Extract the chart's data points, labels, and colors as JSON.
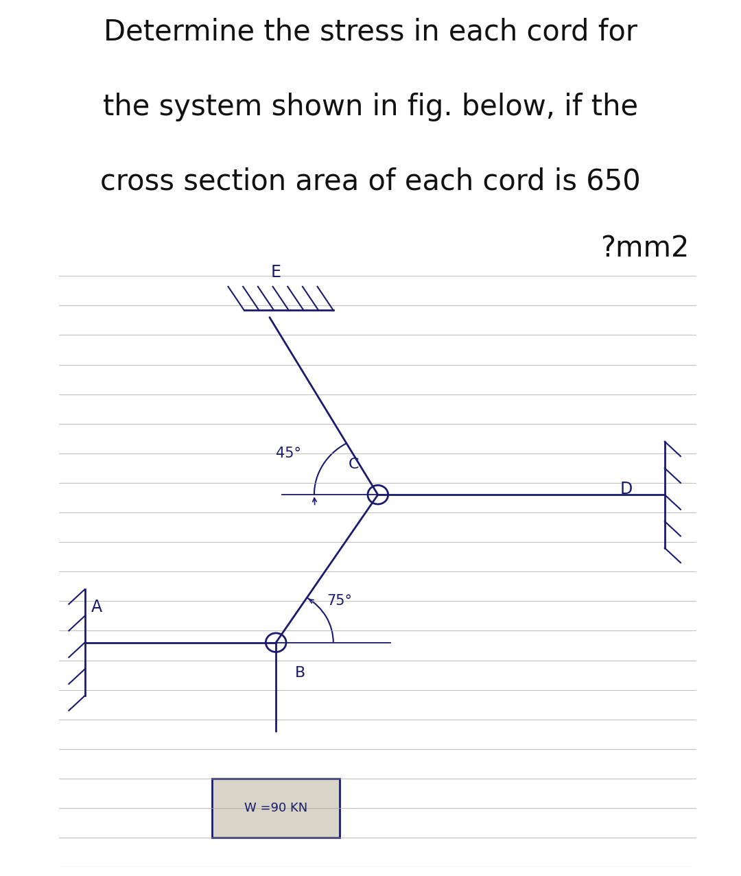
{
  "title_line1": "Determine the stress in each cord for",
  "title_line2": "the system shown in fig. below, if the",
  "title_line3": "cross section area of each cord is 650",
  "title_line4": "?mm2",
  "title_fontsize": 30,
  "bg_color": "#ffffff",
  "diagram_bg_color": "#c8c4bc",
  "line_color": "#1a1a6e",
  "line_width": 2.0,
  "fig_width": 10.8,
  "fig_height": 12.77,
  "label_E": "E",
  "label_C": "C",
  "label_B": "B",
  "label_A": "A",
  "label_D": "D",
  "angle1_label": "45°",
  "angle2_label": "75°",
  "weight_label": "W =90 KN",
  "n_ruled_lines": 20,
  "ruled_line_color": "#aaa8a0"
}
